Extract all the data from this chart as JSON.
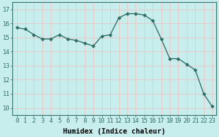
{
  "x": [
    0,
    1,
    2,
    3,
    4,
    5,
    6,
    7,
    8,
    9,
    10,
    11,
    12,
    13,
    14,
    15,
    16,
    17,
    18,
    19,
    20,
    21,
    22,
    23
  ],
  "y": [
    15.7,
    15.6,
    15.2,
    14.9,
    14.9,
    15.2,
    14.9,
    14.8,
    14.6,
    14.4,
    15.1,
    15.2,
    16.4,
    16.7,
    16.7,
    16.6,
    16.2,
    14.9,
    13.5,
    13.5,
    13.1,
    12.7,
    11.0,
    10.1
  ],
  "line_color": "#2e6e65",
  "marker": "D",
  "marker_size": 2.5,
  "line_width": 1.0,
  "bg_color": "#c8eded",
  "grid_color": "#e8c8c8",
  "xlabel": "Humidex (Indice chaleur)",
  "xlabel_fontsize": 7.5,
  "tick_fontsize": 6.5,
  "ylim": [
    9.5,
    17.5
  ],
  "xlim": [
    -0.5,
    23.5
  ],
  "yticks": [
    10,
    11,
    12,
    13,
    14,
    15,
    16,
    17
  ]
}
